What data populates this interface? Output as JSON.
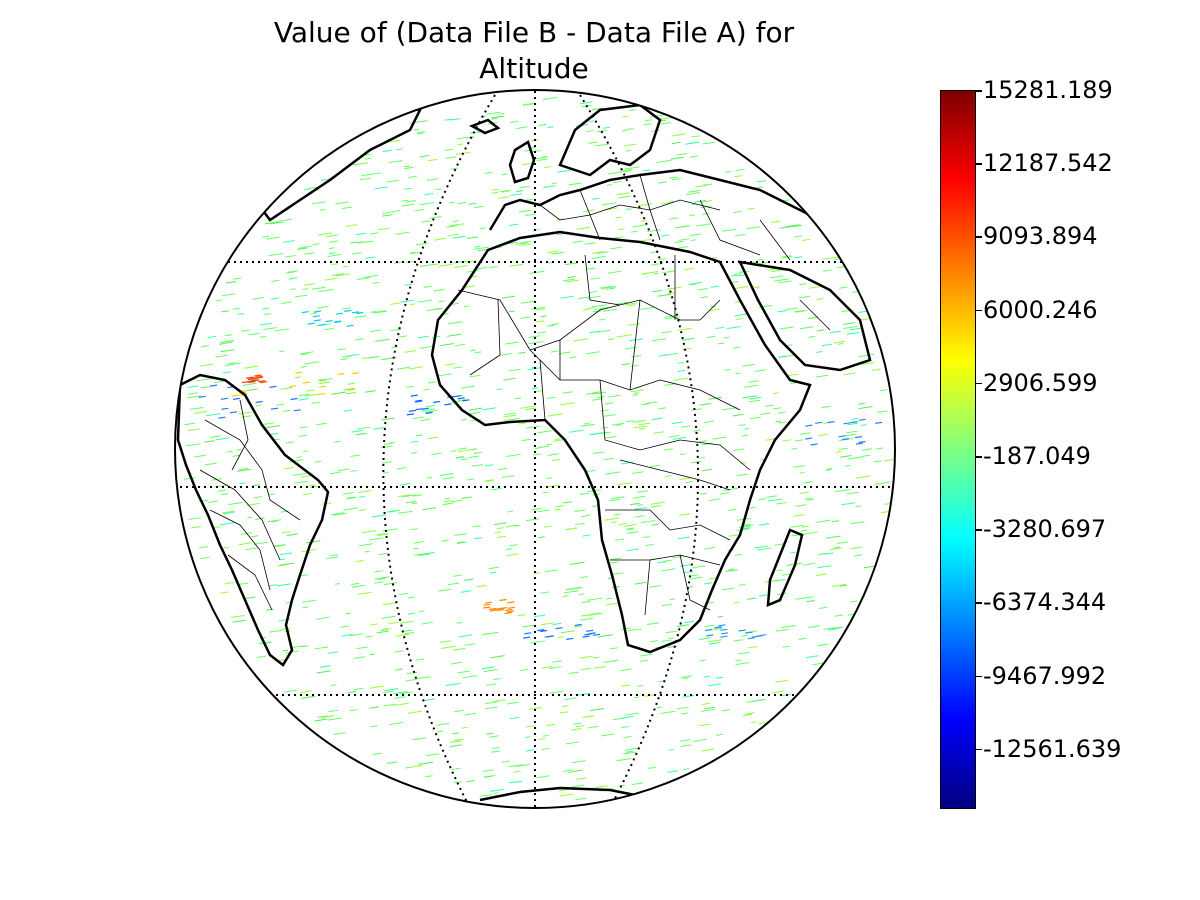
{
  "title": {
    "line1": "Value of (Data File B - Data File A) for",
    "line2": "Altitude"
  },
  "colorbar": {
    "colormap": "jet",
    "colors": [
      "#00007f",
      "#0000ff",
      "#007fff",
      "#00ffff",
      "#7fff7f",
      "#ffff00",
      "#ff7f00",
      "#ff0000",
      "#7f0000"
    ],
    "ticks": [
      "15281.189",
      "12187.542",
      "9093.894",
      "6000.246",
      "2906.599",
      "-187.049",
      "-3280.697",
      "-6374.344",
      "-9467.992",
      "-12561.639"
    ]
  },
  "map": {
    "projection": "orthographic",
    "graticule": "dotted",
    "coastlines": true,
    "country_borders": true,
    "dominant_difference_color": "#66ff66"
  }
}
